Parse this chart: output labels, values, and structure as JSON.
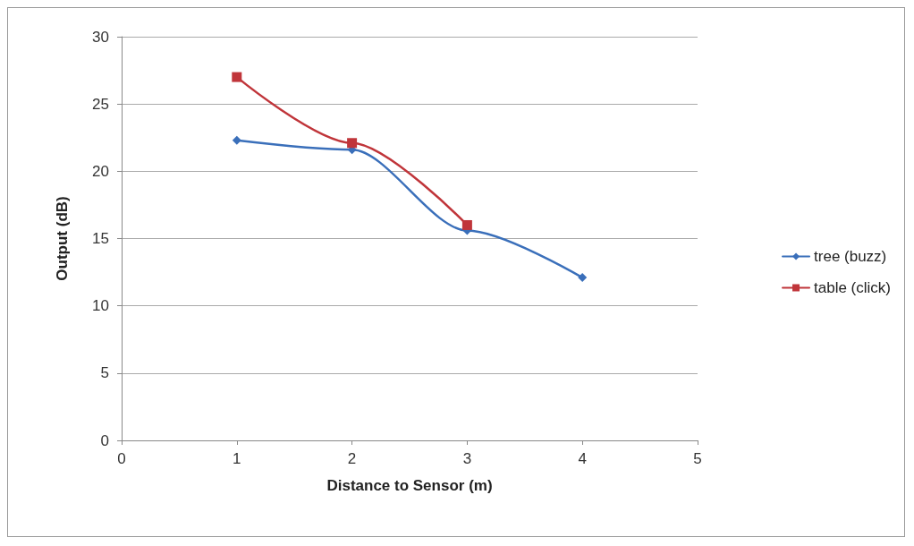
{
  "chart_data": {
    "type": "line",
    "xlabel": "Distance to Sensor (m)",
    "ylabel": "Output (dB)",
    "xlim": [
      0,
      5
    ],
    "xticks": [
      0,
      1,
      2,
      3,
      4,
      5
    ],
    "ylim": [
      0,
      30
    ],
    "yticks": [
      0,
      5,
      10,
      15,
      20,
      25,
      30
    ],
    "grid": "y",
    "legend": "right",
    "series": [
      {
        "name": "tree (buzz)",
        "color": "#3a6fba",
        "marker": "diamond",
        "x": [
          1,
          2,
          3,
          4
        ],
        "values": [
          22.3,
          21.6,
          15.6,
          12.1
        ]
      },
      {
        "name": "table (click)",
        "color": "#c0353a",
        "marker": "square",
        "x": [
          1,
          2,
          3
        ],
        "values": [
          27.0,
          22.1,
          16.0
        ]
      }
    ]
  }
}
